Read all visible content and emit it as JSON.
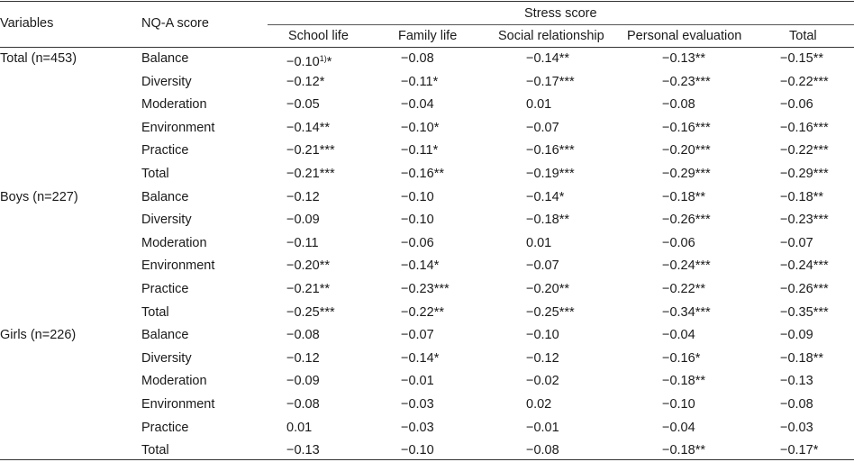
{
  "header": {
    "variables": "Variables",
    "nq_score": "NQ-A score",
    "stress_score": "Stress score",
    "sub": [
      "School life",
      "Family life",
      "Social relationship",
      "Personal evaluation",
      "Total"
    ]
  },
  "groups": [
    {
      "label": "Total (n=453)",
      "rows": [
        {
          "nq": "Balance",
          "vals": [
            "−0.10",
            "−0.08",
            "−0.14**",
            "−0.13**",
            "−0.15**"
          ]
        },
        {
          "nq": "Diversity",
          "vals": [
            "−0.12*",
            "−0.11*",
            "−0.17***",
            "−0.23***",
            "−0.22***"
          ]
        },
        {
          "nq": "Moderation",
          "vals": [
            "−0.05",
            "−0.04",
            "0.01",
            "−0.08",
            "−0.06"
          ]
        },
        {
          "nq": "Environment",
          "vals": [
            "−0.14**",
            "−0.10*",
            "−0.07",
            "−0.16***",
            "−0.16***"
          ]
        },
        {
          "nq": "Practice",
          "vals": [
            "−0.21***",
            "−0.11*",
            "−0.16***",
            "−0.20***",
            "−0.22***"
          ]
        },
        {
          "nq": "Total",
          "vals": [
            "−0.21***",
            "−0.16**",
            "−0.19***",
            "−0.29***",
            "−0.29***"
          ]
        }
      ]
    },
    {
      "label": "Boys (n=227)",
      "rows": [
        {
          "nq": "Balance",
          "vals": [
            "−0.12",
            "−0.10",
            "−0.14*",
            "−0.18**",
            "−0.18**"
          ]
        },
        {
          "nq": "Diversity",
          "vals": [
            "−0.09",
            "−0.10",
            "−0.18**",
            "−0.26***",
            "−0.23***"
          ]
        },
        {
          "nq": "Moderation",
          "vals": [
            "−0.11",
            "−0.06",
            "0.01",
            "−0.06",
            "−0.07"
          ]
        },
        {
          "nq": "Environment",
          "vals": [
            "−0.20**",
            "−0.14*",
            "−0.07",
            "−0.24***",
            "−0.24***"
          ]
        },
        {
          "nq": "Practice",
          "vals": [
            "−0.21**",
            "−0.23***",
            "−0.20**",
            "−0.22**",
            "−0.26***"
          ]
        },
        {
          "nq": "Total",
          "vals": [
            "−0.25***",
            "−0.22**",
            "−0.25***",
            "−0.34***",
            "−0.35***"
          ]
        }
      ]
    },
    {
      "label": "Girls (n=226)",
      "rows": [
        {
          "nq": "Balance",
          "vals": [
            "−0.08",
            "−0.07",
            "−0.10",
            "−0.04",
            "−0.09"
          ]
        },
        {
          "nq": "Diversity",
          "vals": [
            "−0.12",
            "−0.14*",
            "−0.12",
            "−0.16*",
            "−0.18**"
          ]
        },
        {
          "nq": "Moderation",
          "vals": [
            "−0.09",
            "−0.01",
            "−0.02",
            "−0.18**",
            "−0.13"
          ]
        },
        {
          "nq": "Environment",
          "vals": [
            "−0.08",
            "−0.03",
            "0.02",
            "−0.10",
            "−0.08"
          ]
        },
        {
          "nq": "Practice",
          "vals": [
            "0.01",
            "−0.03",
            "−0.01",
            "−0.04",
            "−0.03"
          ]
        },
        {
          "nq": "Total",
          "vals": [
            "−0.13",
            "−0.10",
            "−0.08",
            "−0.18**",
            "−0.17*"
          ]
        }
      ]
    }
  ],
  "footnote_marker": {
    "mark": "1)",
    "suffix": "*"
  }
}
